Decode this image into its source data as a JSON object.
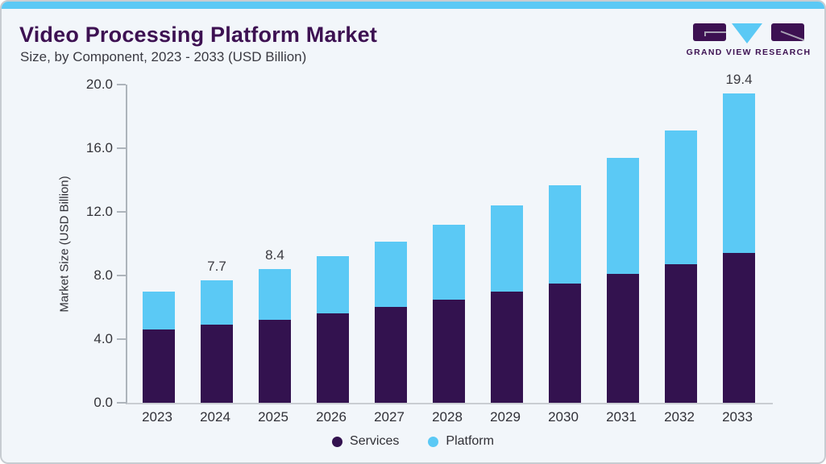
{
  "header": {
    "title": "Video Processing Platform Market",
    "subtitle": "Size, by Component, 2023 - 2033 (USD Billion)",
    "logo_text": "GRAND VIEW RESEARCH"
  },
  "chart_data": {
    "type": "bar",
    "stacked": true,
    "title": "Video Processing Platform Market Size, by Component, 2023 - 2033 (USD Billion)",
    "categories": [
      "2023",
      "2024",
      "2025",
      "2026",
      "2027",
      "2028",
      "2029",
      "2030",
      "2031",
      "2032",
      "2033"
    ],
    "series": [
      {
        "name": "Services",
        "color": "#33124f",
        "values": [
          4.6,
          4.9,
          5.2,
          5.6,
          6.0,
          6.5,
          7.0,
          7.5,
          8.1,
          8.7,
          9.4
        ]
      },
      {
        "name": "Platform",
        "color": "#5bc9f5",
        "values": [
          2.4,
          2.8,
          3.2,
          3.6,
          4.1,
          4.7,
          5.4,
          6.2,
          7.3,
          8.4,
          10.0
        ]
      }
    ],
    "totals": [
      7.0,
      7.7,
      8.4,
      9.2,
      10.1,
      11.2,
      12.4,
      13.7,
      15.4,
      17.1,
      19.4
    ],
    "value_labels": {
      "2024": "7.7",
      "2025": "8.4",
      "2033": "19.4"
    },
    "xlabel": "",
    "ylabel": "Market Size (USD Billion)",
    "ylim": [
      0,
      20
    ],
    "yticks": [
      0,
      4,
      8,
      12,
      16,
      20
    ],
    "ytick_labels": [
      "0.0",
      "4.0",
      "8.0",
      "12.0",
      "16.0",
      "20.0"
    ],
    "grid": false,
    "legend_position": "bottom",
    "legend": [
      "Services",
      "Platform"
    ]
  },
  "colors": {
    "accent_blue": "#5bc9f5",
    "brand_purple": "#3d1152",
    "background": "#f2f6fa",
    "axis": "#adb4bb",
    "text": "#333338"
  }
}
